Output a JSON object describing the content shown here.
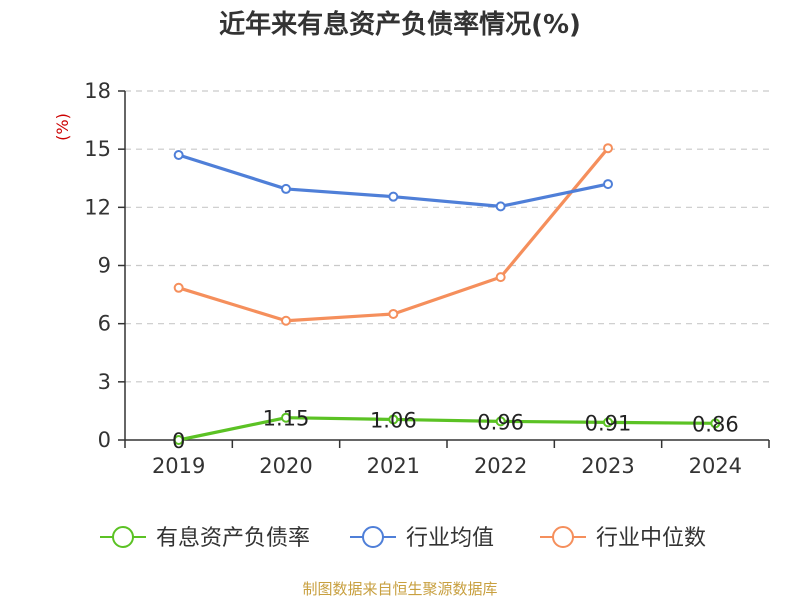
{
  "source": "制图数据来自恒生聚源数据库",
  "chart_data": {
    "type": "line",
    "title": "近年来有息资产负债率情况(%)",
    "ylabel": "(%)",
    "xlabel": "",
    "categories": [
      "2019",
      "2020",
      "2021",
      "2022",
      "2023",
      "2024"
    ],
    "ylim": [
      0,
      18
    ],
    "yticks": [
      0,
      3,
      6,
      9,
      12,
      15,
      18
    ],
    "grid": true,
    "legend_position": "bottom",
    "series": [
      {
        "name": "有息资产负债率",
        "color": "#5bc224",
        "values": [
          0,
          1.15,
          1.06,
          0.96,
          0.91,
          0.86
        ],
        "data_labels": [
          "0",
          "1.15",
          "1.06",
          "0.96",
          "0.91",
          "0.86"
        ]
      },
      {
        "name": "行业均值",
        "color": "#4f7fd8",
        "values": [
          14.7,
          12.95,
          12.55,
          12.05,
          13.2,
          null
        ]
      },
      {
        "name": "行业中位数",
        "color": "#f58f5c",
        "values": [
          7.85,
          6.15,
          6.5,
          8.4,
          15.05,
          null
        ]
      }
    ]
  }
}
